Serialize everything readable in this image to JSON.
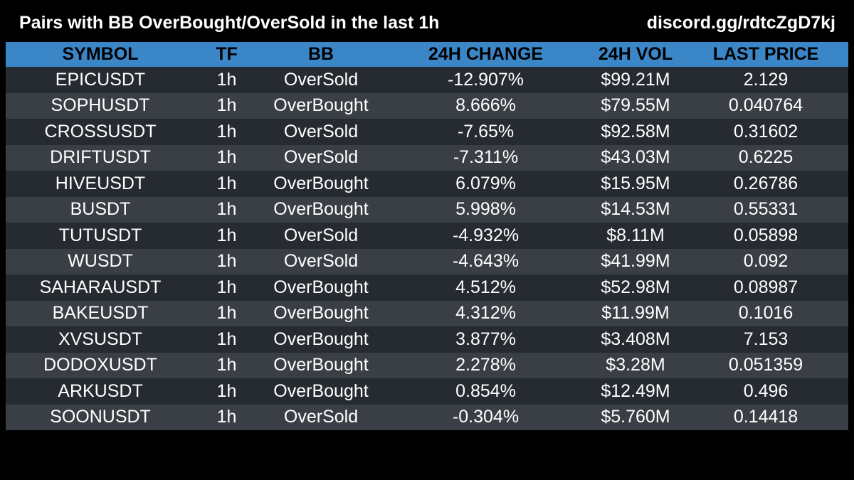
{
  "header": {
    "title": "Pairs with BB OverBought/OverSold in the last 1h",
    "link": "discord.gg/rdtcZgD7kj"
  },
  "table": {
    "columns": [
      "SYMBOL",
      "TF",
      "BB",
      "24H CHANGE",
      "24H VOL",
      "LAST PRICE"
    ],
    "rows": [
      [
        "EPICUSDT",
        "1h",
        "OverSold",
        "-12.907%",
        "$99.21M",
        "2.129"
      ],
      [
        "SOPHUSDT",
        "1h",
        "OverBought",
        "8.666%",
        "$79.55M",
        "0.040764"
      ],
      [
        "CROSSUSDT",
        "1h",
        "OverSold",
        "-7.65%",
        "$92.58M",
        "0.31602"
      ],
      [
        "DRIFTUSDT",
        "1h",
        "OverSold",
        "-7.311%",
        "$43.03M",
        "0.6225"
      ],
      [
        "HIVEUSDT",
        "1h",
        "OverBought",
        "6.079%",
        "$15.95M",
        "0.26786"
      ],
      [
        "BUSDT",
        "1h",
        "OverBought",
        "5.998%",
        "$14.53M",
        "0.55331"
      ],
      [
        "TUTUSDT",
        "1h",
        "OverSold",
        "-4.932%",
        "$8.11M",
        "0.05898"
      ],
      [
        "WUSDT",
        "1h",
        "OverSold",
        "-4.643%",
        "$41.99M",
        "0.092"
      ],
      [
        "SAHARAUSDT",
        "1h",
        "OverBought",
        "4.512%",
        "$52.98M",
        "0.08987"
      ],
      [
        "BAKEUSDT",
        "1h",
        "OverBought",
        "4.312%",
        "$11.99M",
        "0.1016"
      ],
      [
        "XVSUSDT",
        "1h",
        "OverBought",
        "3.877%",
        "$3.408M",
        "7.153"
      ],
      [
        "DODOXUSDT",
        "1h",
        "OverBought",
        "2.278%",
        "$3.28M",
        "0.051359"
      ],
      [
        "ARKUSDT",
        "1h",
        "OverBought",
        "0.854%",
        "$12.49M",
        "0.496"
      ],
      [
        "SOONUSDT",
        "1h",
        "OverSold",
        "-0.304%",
        "$5.760M",
        "0.14418"
      ]
    ]
  },
  "colors": {
    "background": "#000000",
    "header_row": "#3a86c6",
    "row_dark": "#252b31",
    "row_light": "#393f45",
    "text": "#ffffff",
    "header_text": "#000000"
  }
}
